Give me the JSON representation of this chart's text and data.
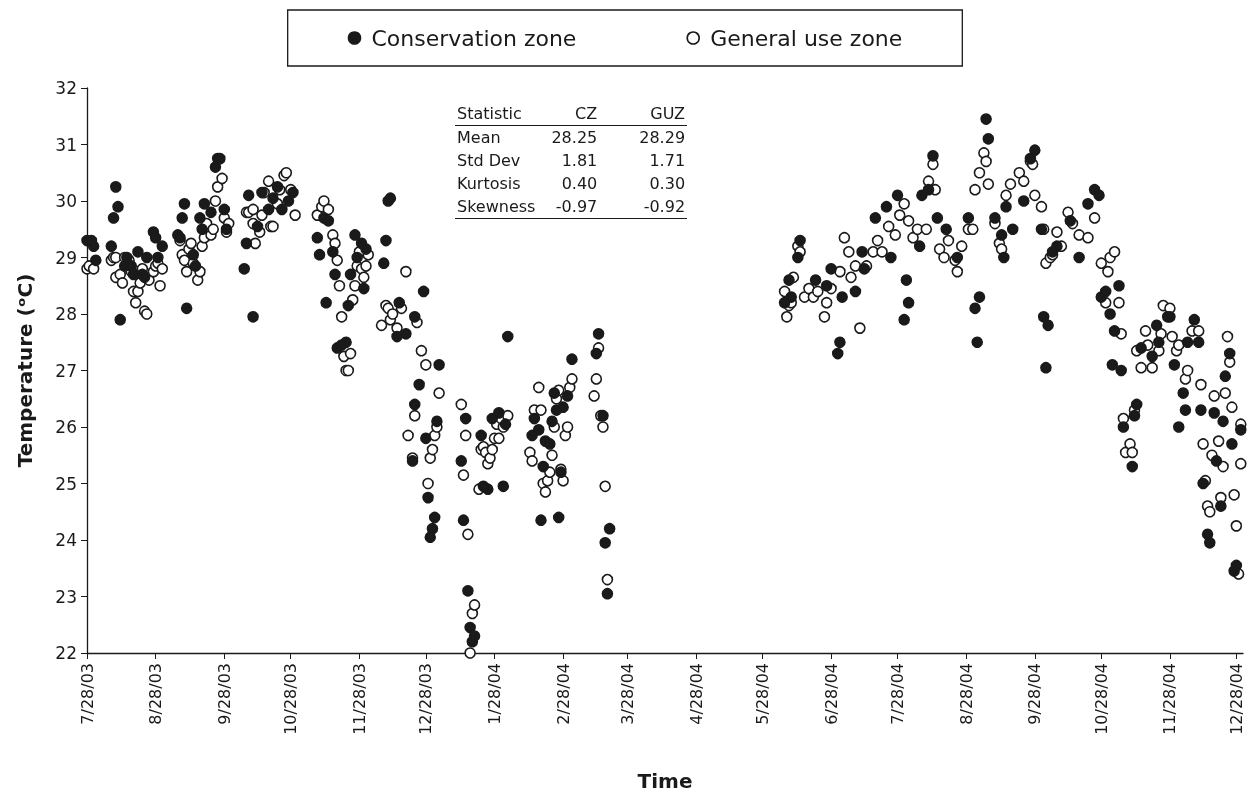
{
  "chart_data": {
    "type": "scatter",
    "xlabel": "Time",
    "ylabel": "Temperature (ᵒC)",
    "legend": "top",
    "grid": false,
    "marker": "circle",
    "xlim": [
      "2003-07-28",
      "2004-12-31"
    ],
    "ylim": [
      22,
      32
    ],
    "yticks": [
      22,
      23,
      24,
      25,
      26,
      27,
      28,
      29,
      30,
      31,
      32
    ],
    "xticks": [
      {
        "value": "2003-07-28",
        "label": "7/28/03"
      },
      {
        "value": "2003-08-28",
        "label": "8/28/03"
      },
      {
        "value": "2003-09-28",
        "label": "9/28/03"
      },
      {
        "value": "2003-10-28",
        "label": "10/28/03"
      },
      {
        "value": "2003-11-28",
        "label": "11/28/03"
      },
      {
        "value": "2003-12-28",
        "label": "12/28/03"
      },
      {
        "value": "2004-01-28",
        "label": "1/28/04"
      },
      {
        "value": "2004-02-28",
        "label": "2/28/04"
      },
      {
        "value": "2004-03-28",
        "label": "3/28/04"
      },
      {
        "value": "2004-04-28",
        "label": "4/28/04"
      },
      {
        "value": "2004-05-28",
        "label": "5/28/04"
      },
      {
        "value": "2004-06-28",
        "label": "6/28/04"
      },
      {
        "value": "2004-07-28",
        "label": "7/28/04"
      },
      {
        "value": "2004-08-28",
        "label": "8/28/04"
      },
      {
        "value": "2004-09-28",
        "label": "9/28/04"
      },
      {
        "value": "2004-10-28",
        "label": "10/28/04"
      },
      {
        "value": "2004-11-28",
        "label": "11/28/04"
      },
      {
        "value": "2004-12-28",
        "label": "12/28/04"
      }
    ],
    "annotations": [
      "Statistic\tCZ\tGUZ",
      "Mean\t28.25\t28.29",
      "Std Dev\t1.81\t1.71",
      "Kurtosis\t0.40\t0.30",
      "Skewness\t-0.97\t-0.92"
    ],
    "series": [
      {
        "name": "Conservation zone",
        "color": "#1a1a1a",
        "x": [
          "2003-07-28",
          "2003-07-30",
          "2003-07-31",
          "2003-08-01",
          "2003-08-08",
          "2003-08-09",
          "2003-08-10",
          "2003-08-11",
          "2003-08-12",
          "2003-08-14",
          "2003-08-15",
          "2003-08-17",
          "2003-08-18",
          "2003-08-20",
          "2003-08-22",
          "2003-08-23",
          "2003-08-24",
          "2003-08-27",
          "2003-08-28",
          "2003-08-29",
          "2003-08-31",
          "2003-09-07",
          "2003-09-08",
          "2003-09-09",
          "2003-09-10",
          "2003-09-11",
          "2003-09-14",
          "2003-09-15",
          "2003-09-17",
          "2003-09-18",
          "2003-09-19",
          "2003-09-22",
          "2003-09-24",
          "2003-09-25",
          "2003-09-26",
          "2003-09-28",
          "2003-09-29",
          "2003-10-07",
          "2003-10-08",
          "2003-10-09",
          "2003-10-11",
          "2003-10-13",
          "2003-10-15",
          "2003-10-18",
          "2003-10-20",
          "2003-10-22",
          "2003-10-24",
          "2003-10-27",
          "2003-10-29",
          "2003-11-09",
          "2003-11-10",
          "2003-11-12",
          "2003-11-13",
          "2003-11-14",
          "2003-11-16",
          "2003-11-17",
          "2003-11-18",
          "2003-11-20",
          "2003-11-22",
          "2003-11-23",
          "2003-11-24",
          "2003-11-26",
          "2003-11-27",
          "2003-11-29",
          "2003-11-30",
          "2003-12-01",
          "2003-12-09",
          "2003-12-10",
          "2003-12-11",
          "2003-12-12",
          "2003-12-15",
          "2003-12-16",
          "2003-12-19",
          "2003-12-22",
          "2003-12-23",
          "2003-12-23",
          "2003-12-25",
          "2003-12-27",
          "2003-12-28",
          "2003-12-29",
          "2003-12-30",
          "2003-12-31",
          "2004-01-01",
          "2004-01-02",
          "2004-01-03",
          "2004-01-13",
          "2004-01-14",
          "2004-01-15",
          "2004-01-16",
          "2004-01-17",
          "2004-01-18",
          "2004-01-19",
          "2004-01-25",
          "2004-01-22",
          "2004-01-23",
          "2004-01-27",
          "2004-01-30",
          "2004-02-01",
          "2004-02-02",
          "2004-02-03",
          "2004-02-14",
          "2004-02-15",
          "2004-02-17",
          "2004-02-18",
          "2004-02-19",
          "2004-02-20",
          "2004-02-22",
          "2004-02-23",
          "2004-02-24",
          "2004-02-25",
          "2004-02-26",
          "2004-02-27",
          "2004-02-28",
          "2004-03-01",
          "2004-03-03",
          "2004-03-14",
          "2004-03-15",
          "2004-03-17",
          "2004-03-18",
          "2004-03-19",
          "2004-03-20",
          "2004-06-07",
          "2004-06-09",
          "2004-06-10",
          "2004-06-13",
          "2004-06-14",
          "2004-06-21",
          "2004-06-26",
          "2004-06-28",
          "2004-07-01",
          "2004-07-02",
          "2004-07-03",
          "2004-07-09",
          "2004-07-12",
          "2004-07-13",
          "2004-07-18",
          "2004-07-23",
          "2004-07-25",
          "2004-07-28",
          "2004-07-31",
          "2004-08-01",
          "2004-08-02",
          "2004-08-07",
          "2004-08-08",
          "2004-08-11",
          "2004-08-13",
          "2004-08-15",
          "2004-08-19",
          "2004-08-24",
          "2004-08-29",
          "2004-09-01",
          "2004-09-02",
          "2004-09-03",
          "2004-09-06",
          "2004-09-07",
          "2004-09-10",
          "2004-09-13",
          "2004-09-14",
          "2004-09-15",
          "2004-09-18",
          "2004-09-23",
          "2004-09-26",
          "2004-09-28",
          "2004-10-01",
          "2004-10-02",
          "2004-10-03",
          "2004-10-04",
          "2004-10-06",
          "2004-10-08",
          "2004-10-14",
          "2004-10-18",
          "2004-10-22",
          "2004-10-25",
          "2004-10-27",
          "2004-10-28",
          "2004-10-30",
          "2004-11-01",
          "2004-11-02",
          "2004-11-03",
          "2004-11-05",
          "2004-11-06",
          "2004-11-07",
          "2004-11-11",
          "2004-11-12",
          "2004-11-13",
          "2004-11-15",
          "2004-11-20",
          "2004-11-22",
          "2004-11-23",
          "2004-11-27",
          "2004-11-28",
          "2004-11-30",
          "2004-12-02",
          "2004-12-04",
          "2004-12-05",
          "2004-12-06",
          "2004-12-09",
          "2004-12-11",
          "2004-12-12",
          "2004-12-13",
          "2004-12-15",
          "2004-12-16",
          "2004-12-18",
          "2004-12-19",
          "2004-12-21",
          "2004-12-22",
          "2004-12-23",
          "2004-12-25",
          "2004-12-26",
          "2004-12-27",
          "2004-12-28",
          "2004-12-30"
        ],
        "values": [
          29.3,
          29.3,
          29.2,
          28.95,
          29.2,
          29.7,
          30.25,
          29.9,
          27.9,
          28.85,
          29.0,
          28.85,
          28.7,
          29.1,
          28.7,
          28.65,
          29.0,
          29.45,
          29.35,
          29.0,
          29.2,
          29.4,
          29.35,
          29.7,
          29.95,
          28.1,
          29.05,
          28.85,
          29.7,
          29.5,
          29.95,
          29.8,
          30.6,
          30.75,
          30.75,
          29.85,
          29.5,
          28.8,
          29.25,
          30.1,
          27.95,
          29.55,
          30.15,
          29.85,
          30.05,
          30.25,
          29.85,
          30.0,
          30.15,
          29.35,
          29.05,
          29.7,
          28.2,
          29.65,
          29.1,
          28.7,
          27.4,
          27.45,
          27.5,
          28.15,
          28.7,
          29.4,
          29.0,
          29.25,
          28.45,
          29.15,
          28.9,
          29.3,
          30.0,
          30.05,
          27.6,
          28.2,
          27.65,
          25.4,
          26.4,
          27.95,
          26.75,
          28.4,
          25.8,
          24.75,
          24.05,
          24.2,
          24.4,
          26.1,
          27.1,
          25.4,
          24.35,
          26.15,
          23.1,
          22.45,
          22.2,
          22.3,
          24.9,
          25.85,
          24.95,
          26.15,
          26.25,
          24.95,
          26.05,
          27.6,
          25.85,
          26.15,
          25.95,
          24.35,
          25.3,
          25.75,
          25.7,
          26.1,
          26.6,
          26.3,
          24.4,
          25.2,
          26.35,
          26.55,
          27.2,
          27.3,
          27.65,
          26.2,
          23.95,
          23.05,
          24.2,
          28.2,
          28.6,
          28.3,
          29.0,
          29.3,
          28.6,
          28.5,
          28.8,
          27.3,
          27.5,
          28.3,
          28.4,
          29.1,
          28.8,
          29.7,
          29.9,
          29.0,
          30.1,
          27.9,
          28.6,
          28.2,
          29.2,
          30.1,
          30.2,
          30.8,
          29.7,
          29.5,
          29.0,
          29.7,
          28.1,
          27.5,
          28.3,
          31.45,
          31.1,
          29.7,
          29.4,
          29.0,
          29.9,
          29.5,
          30.0,
          30.75,
          30.9,
          29.5,
          27.95,
          27.05,
          27.8,
          29.1,
          29.2,
          29.65,
          29.0,
          29.95,
          30.2,
          30.1,
          28.3,
          28.4,
          28.0,
          27.1,
          27.7,
          28.5,
          27.0,
          26.0,
          25.3,
          26.2,
          26.4,
          27.4,
          27.25,
          27.8,
          27.5,
          27.95,
          27.95,
          27.1,
          26.0,
          26.6,
          26.3,
          27.5,
          27.9,
          27.5,
          26.3,
          25.0,
          24.1,
          23.95,
          26.25,
          25.4,
          24.6,
          26.1,
          26.9,
          27.3,
          25.7,
          23.45,
          23.55,
          25.95
        ]
      },
      {
        "name": "General use zone",
        "color": "#ffffff",
        "x": [
          "2003-07-28",
          "2003-07-29",
          "2003-07-31",
          "2003-08-08",
          "2003-08-09",
          "2003-08-10",
          "2003-08-10",
          "2003-08-12",
          "2003-08-13",
          "2003-08-14",
          "2003-08-16",
          "2003-08-17",
          "2003-08-18",
          "2003-08-19",
          "2003-08-20",
          "2003-08-21",
          "2003-08-22",
          "2003-08-23",
          "2003-08-24",
          "2003-08-25",
          "2003-08-27",
          "2003-08-28",
          "2003-08-29",
          "2003-08-30",
          "2003-08-31",
          "2003-09-08",
          "2003-09-09",
          "2003-09-10",
          "2003-09-11",
          "2003-09-12",
          "2003-09-13",
          "2003-09-14",
          "2003-09-16",
          "2003-09-17",
          "2003-09-18",
          "2003-09-19",
          "2003-09-20",
          "2003-09-22",
          "2003-09-23",
          "2003-09-24",
          "2003-09-25",
          "2003-09-27",
          "2003-09-28",
          "2003-09-29",
          "2003-09-30",
          "2003-10-08",
          "2003-10-09",
          "2003-10-11",
          "2003-10-11",
          "2003-10-12",
          "2003-10-14",
          "2003-10-15",
          "2003-10-16",
          "2003-10-18",
          "2003-10-19",
          "2003-10-20",
          "2003-10-22",
          "2003-10-23",
          "2003-10-25",
          "2003-10-26",
          "2003-10-28",
          "2003-10-30",
          "2003-11-09",
          "2003-11-11",
          "2003-11-12",
          "2003-11-14",
          "2003-11-16",
          "2003-11-17",
          "2003-11-18",
          "2003-11-19",
          "2003-11-20",
          "2003-11-21",
          "2003-11-22",
          "2003-11-23",
          "2003-11-24",
          "2003-11-25",
          "2003-11-26",
          "2003-11-27",
          "2003-11-28",
          "2003-11-29",
          "2003-11-30",
          "2003-12-01",
          "2003-12-02",
          "2003-12-08",
          "2003-12-10",
          "2003-12-11",
          "2003-12-12",
          "2003-12-13",
          "2003-12-15",
          "2003-12-17",
          "2003-12-19",
          "2003-12-20",
          "2003-12-22",
          "2003-12-23",
          "2003-12-24",
          "2003-12-26",
          "2003-12-28",
          "2003-12-29",
          "2003-12-30",
          "2003-12-31",
          "2004-01-01",
          "2004-01-02",
          "2004-01-03",
          "2004-01-13",
          "2004-01-14",
          "2004-01-15",
          "2004-01-16",
          "2004-01-17",
          "2004-01-18",
          "2004-01-19",
          "2004-01-21",
          "2004-01-22",
          "2004-01-23",
          "2004-01-24",
          "2004-01-25",
          "2004-01-26",
          "2004-01-27",
          "2004-01-28",
          "2004-01-29",
          "2004-01-30",
          "2004-01-31",
          "2004-02-01",
          "2004-02-03",
          "2004-02-13",
          "2004-02-14",
          "2004-02-15",
          "2004-02-17",
          "2004-02-18",
          "2004-02-19",
          "2004-02-20",
          "2004-02-21",
          "2004-02-22",
          "2004-02-23",
          "2004-02-24",
          "2004-02-25",
          "2004-02-26",
          "2004-02-27",
          "2004-02-28",
          "2004-02-29",
          "2004-03-01",
          "2004-03-02",
          "2004-03-03",
          "2004-03-13",
          "2004-03-14",
          "2004-03-15",
          "2004-03-16",
          "2004-03-17",
          "2004-03-18",
          "2004-03-19",
          "2004-06-07",
          "2004-06-08",
          "2004-06-09",
          "2004-06-10",
          "2004-06-11",
          "2004-06-13",
          "2004-06-14",
          "2004-06-16",
          "2004-06-18",
          "2004-06-20",
          "2004-06-22",
          "2004-06-25",
          "2004-06-26",
          "2004-06-28",
          "2004-07-02",
          "2004-07-04",
          "2004-07-06",
          "2004-07-07",
          "2004-07-09",
          "2004-07-11",
          "2004-07-14",
          "2004-07-17",
          "2004-07-19",
          "2004-07-21",
          "2004-07-24",
          "2004-07-27",
          "2004-07-29",
          "2004-07-31",
          "2004-08-02",
          "2004-08-04",
          "2004-08-06",
          "2004-08-10",
          "2004-08-11",
          "2004-08-13",
          "2004-08-14",
          "2004-08-16",
          "2004-08-18",
          "2004-08-20",
          "2004-08-23",
          "2004-08-24",
          "2004-08-26",
          "2004-08-29",
          "2004-08-31",
          "2004-09-01",
          "2004-09-03",
          "2004-09-05",
          "2004-09-06",
          "2004-09-07",
          "2004-09-10",
          "2004-09-12",
          "2004-09-13",
          "2004-09-15",
          "2004-09-17",
          "2004-09-21",
          "2004-09-23",
          "2004-09-26",
          "2004-09-27",
          "2004-09-28",
          "2004-10-01",
          "2004-10-02",
          "2004-10-03",
          "2004-10-05",
          "2004-10-06",
          "2004-10-08",
          "2004-10-10",
          "2004-10-13",
          "2004-10-15",
          "2004-10-18",
          "2004-10-22",
          "2004-10-25",
          "2004-10-28",
          "2004-10-30",
          "2004-10-31",
          "2004-11-01",
          "2004-11-03",
          "2004-11-05",
          "2004-11-06",
          "2004-11-07",
          "2004-11-08",
          "2004-11-10",
          "2004-11-11",
          "2004-11-12",
          "2004-11-13",
          "2004-11-15",
          "2004-11-17",
          "2004-11-18",
          "2004-11-20",
          "2004-11-23",
          "2004-11-24",
          "2004-11-25",
          "2004-11-28",
          "2004-11-29",
          "2004-12-01",
          "2004-12-02",
          "2004-12-05",
          "2004-12-06",
          "2004-12-08",
          "2004-12-11",
          "2004-12-12",
          "2004-12-13",
          "2004-12-14",
          "2004-12-15",
          "2004-12-16",
          "2004-12-17",
          "2004-12-18",
          "2004-12-20",
          "2004-12-21",
          "2004-12-22",
          "2004-12-23",
          "2004-12-24",
          "2004-12-25",
          "2004-12-26",
          "2004-12-27",
          "2004-12-28",
          "2004-12-29",
          "2004-12-30",
          "2004-12-30"
        ],
        "values": [
          28.8,
          28.85,
          28.8,
          28.95,
          29.0,
          29.0,
          28.65,
          28.7,
          28.55,
          29.0,
          28.95,
          28.75,
          28.4,
          28.2,
          28.4,
          28.55,
          28.8,
          28.05,
          28.0,
          28.6,
          28.75,
          28.85,
          28.9,
          28.5,
          28.8,
          29.3,
          29.05,
          28.95,
          28.75,
          29.15,
          29.25,
          28.9,
          28.6,
          28.75,
          29.2,
          29.35,
          29.6,
          29.4,
          29.5,
          30.0,
          30.25,
          30.4,
          29.7,
          29.45,
          29.6,
          29.8,
          29.8,
          29.85,
          29.6,
          29.25,
          29.45,
          29.75,
          30.15,
          30.35,
          29.55,
          29.55,
          29.95,
          30.2,
          30.45,
          30.5,
          30.2,
          29.75,
          29.75,
          29.9,
          30.0,
          29.85,
          29.4,
          29.25,
          28.95,
          28.5,
          27.95,
          27.25,
          27.0,
          27.0,
          27.3,
          28.25,
          28.5,
          28.85,
          29.1,
          28.8,
          28.65,
          28.85,
          29.05,
          27.8,
          28.15,
          28.1,
          27.9,
          28.0,
          27.75,
          28.1,
          28.75,
          25.85,
          25.45,
          26.2,
          27.85,
          27.35,
          27.1,
          25.0,
          25.45,
          25.6,
          25.85,
          26.0,
          26.6,
          26.4,
          25.15,
          25.85,
          24.1,
          22.0,
          22.7,
          22.85,
          24.9,
          25.6,
          25.65,
          25.55,
          25.35,
          25.45,
          25.6,
          25.8,
          26.05,
          25.8,
          26.15,
          26.0,
          26.2,
          25.55,
          25.4,
          26.3,
          26.7,
          26.3,
          25.0,
          24.85,
          25.05,
          25.2,
          25.5,
          26.0,
          26.5,
          26.65,
          25.25,
          25.05,
          25.85,
          26.0,
          26.7,
          26.85,
          26.55,
          26.85,
          27.4,
          26.2,
          26.0,
          24.95,
          23.3,
          28.4,
          27.95,
          28.15,
          28.2,
          28.65,
          29.2,
          29.1,
          28.3,
          28.45,
          28.3,
          28.4,
          27.95,
          28.2,
          28.45,
          28.75,
          29.35,
          29.1,
          28.65,
          28.85,
          27.75,
          28.85,
          29.1,
          29.3,
          29.1,
          29.55,
          29.4,
          29.75,
          29.95,
          29.65,
          29.35,
          29.5,
          29.5,
          30.35,
          30.65,
          30.2,
          29.15,
          29.0,
          29.3,
          28.95,
          28.75,
          29.2,
          29.5,
          29.5,
          30.2,
          30.5,
          30.85,
          30.7,
          30.3,
          29.6,
          29.25,
          29.15,
          30.1,
          30.3,
          30.5,
          30.35,
          30.7,
          30.65,
          30.1,
          29.9,
          29.5,
          28.9,
          29.0,
          29.05,
          29.45,
          29.2,
          29.8,
          29.6,
          29.4,
          29.35,
          29.7,
          28.9,
          28.2,
          28.75,
          29.0,
          29.1,
          28.2,
          27.65,
          26.15,
          25.55,
          25.7,
          25.55,
          26.3,
          27.35,
          27.05,
          27.7,
          27.45,
          27.05,
          27.35,
          27.65,
          28.15,
          28.1,
          27.6,
          27.35,
          27.45,
          26.85,
          27.0,
          27.7,
          27.7,
          26.75,
          25.7,
          25.05,
          24.6,
          24.5,
          25.5,
          26.55,
          25.75,
          24.75,
          25.3,
          26.6,
          27.6,
          27.15,
          26.35,
          24.8,
          24.25,
          23.4,
          25.35,
          26.05
        ]
      }
    ]
  }
}
